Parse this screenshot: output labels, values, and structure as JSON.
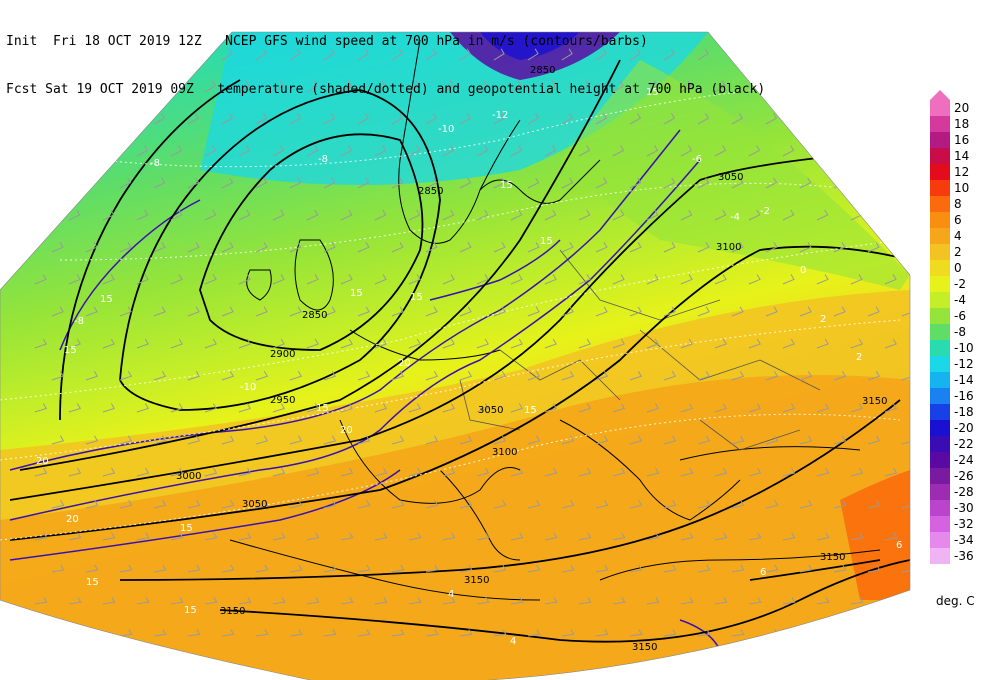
{
  "header": {
    "line1": "Init  Fri 18 OCT 2019 12Z   NCEP GFS wind speed at 700 hPa in m/s (contours/barbs)",
    "line2": "Fcst Sat 19 OCT 2019 09Z   temperature (shaded/dotted) and geopotential height at 700 hPa (black)"
  },
  "colorbar": {
    "unit": "deg. C",
    "levels": [
      {
        "label": "20",
        "color": "#ee6fbd"
      },
      {
        "label": "18",
        "color": "#d4399e"
      },
      {
        "label": "16",
        "color": "#b41b82"
      },
      {
        "label": "14",
        "color": "#c80d48"
      },
      {
        "label": "12",
        "color": "#e40b1d"
      },
      {
        "label": "10",
        "color": "#f83b0c"
      },
      {
        "label": "8",
        "color": "#fb6a0c"
      },
      {
        "label": "6",
        "color": "#f98f10"
      },
      {
        "label": "4",
        "color": "#f5a619"
      },
      {
        "label": "2",
        "color": "#f2c322"
      },
      {
        "label": "0",
        "color": "#f0dc1e"
      },
      {
        "label": "-2",
        "color": "#e7f21a"
      },
      {
        "label": "-4",
        "color": "#c4ee28"
      },
      {
        "label": "-6",
        "color": "#94e43a"
      },
      {
        "label": "-8",
        "color": "#5fdd67"
      },
      {
        "label": "-10",
        "color": "#29dcb0"
      },
      {
        "label": "-12",
        "color": "#1ad8e8"
      },
      {
        "label": "-14",
        "color": "#15b4f0"
      },
      {
        "label": "-16",
        "color": "#1a82f0"
      },
      {
        "label": "-18",
        "color": "#1840e6"
      },
      {
        "label": "-20",
        "color": "#1a10d2"
      },
      {
        "label": "-22",
        "color": "#3a0cb4"
      },
      {
        "label": "-24",
        "color": "#5a0aa2"
      },
      {
        "label": "-26",
        "color": "#7a1aa0"
      },
      {
        "label": "-28",
        "color": "#9c2cb2"
      },
      {
        "label": "-30",
        "color": "#ba44cc"
      },
      {
        "label": "-32",
        "color": "#d562e0"
      },
      {
        "label": "-34",
        "color": "#e58aec"
      },
      {
        "label": "-36",
        "color": "#f0b4f4"
      }
    ]
  },
  "map_labels": {
    "height": [
      "2850",
      "3050",
      "3100",
      "2850",
      "2850",
      "2900",
      "2950",
      "3000",
      "3050",
      "3050",
      "3100",
      "3150",
      "3150",
      "3150",
      "3150",
      "3150"
    ],
    "wind": [
      "15",
      "15",
      "15",
      "15",
      "15",
      "15",
      "15",
      "15",
      "20",
      "20",
      "20",
      "20",
      "15",
      "15",
      "15",
      "15"
    ],
    "temp": [
      "-12",
      "-8",
      "-8",
      "-8",
      "-6",
      "-4",
      "-2",
      "0",
      "2",
      "2",
      "4",
      "4",
      "6",
      "6",
      "-10",
      "-10"
    ]
  }
}
